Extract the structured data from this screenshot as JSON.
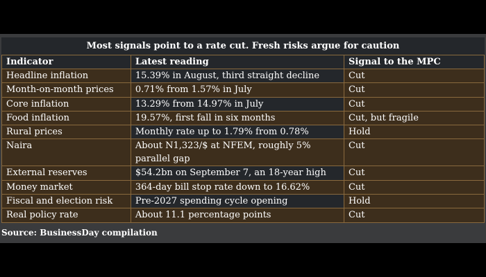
{
  "title": "Most signals point to a rate cut. Fresh risks argue for caution",
  "headers": [
    "Indicator",
    "Latest reading",
    "Signal to the MPC"
  ],
  "rows": [
    {
      "indicator": "Headline inflation",
      "reading": "15.39% in August, third straight decline",
      "signal": "Cut"
    },
    {
      "indicator": "Month-on-month prices",
      "reading": "0.71% from 1.57% in July",
      "signal": "Cut"
    },
    {
      "indicator": "Core inflation",
      "reading": "13.29% from 14.97% in July",
      "signal": "Cut"
    },
    {
      "indicator": "Food inflation",
      "reading": "19.57%, first fall in six months",
      "signal": "Cut, but fragile"
    },
    {
      "indicator": "Rural prices",
      "reading": "Monthly rate up to 1.79% from 0.78%",
      "signal": "Hold"
    },
    {
      "indicator": "Naira",
      "reading": "About N1,323/$ at NFEM, roughly 5% parallel gap",
      "signal": "Cut"
    },
    {
      "indicator": "External reserves",
      "reading": "$54.2bn on September 7, an 18-year high",
      "signal": "Cut"
    },
    {
      "indicator": "Money market",
      "reading": "364-day bill stop rate down to 16.62%",
      "signal": "Cut"
    },
    {
      "indicator": "Fiscal and election risk",
      "reading": "Pre-2027 spending cycle opening",
      "signal": "Hold"
    },
    {
      "indicator": "Real policy rate",
      "reading": "About 11.1 percentage points",
      "signal": "Cut"
    }
  ],
  "source": "Source: BusinessDay compilation",
  "colors": {
    "header_bg": "#24272b",
    "row_brown": "#3d2e1c",
    "grid_line": "#8a6a3e",
    "panel": "#3a3b3d",
    "text": "#ffffff"
  }
}
